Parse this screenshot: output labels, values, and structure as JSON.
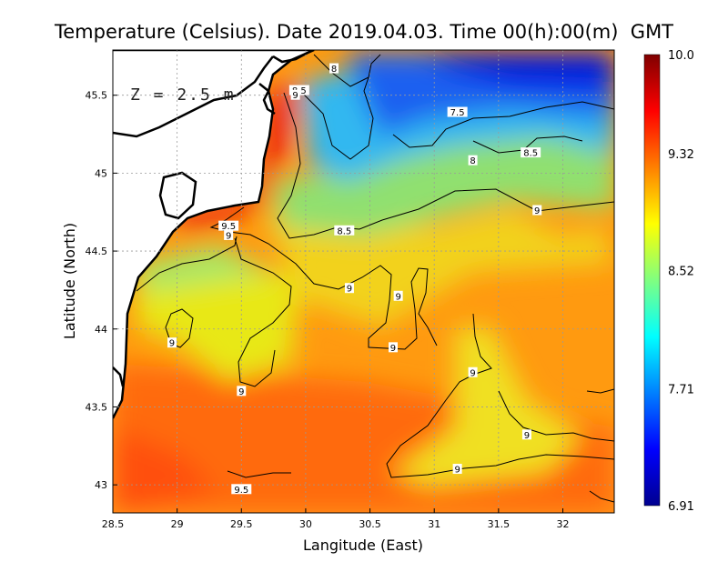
{
  "chart_data": {
    "type": "heatmap",
    "title": "Temperature (Celsius). Date 2019.04.03. Time 00(h):00(m)  GMT",
    "xlabel": "Langitude (East)",
    "ylabel": "Latitude (North)",
    "annotation": "Z = 2.5 m",
    "xlim": [
      28.5,
      32.4
    ],
    "ylim": [
      42.82,
      45.79
    ],
    "x_ticks": [
      {
        "value": 28.5,
        "label": "28.5"
      },
      {
        "value": 29,
        "label": "29"
      },
      {
        "value": 29.5,
        "label": "29.5"
      },
      {
        "value": 30,
        "label": "30"
      },
      {
        "value": 30.5,
        "label": "30.5"
      },
      {
        "value": 31,
        "label": "31"
      },
      {
        "value": 31.5,
        "label": "31.5"
      },
      {
        "value": 32,
        "label": "32"
      }
    ],
    "y_ticks": [
      {
        "value": 43,
        "label": "43"
      },
      {
        "value": 43.5,
        "label": "43.5"
      },
      {
        "value": 44,
        "label": "44"
      },
      {
        "value": 44.5,
        "label": "44.5"
      },
      {
        "value": 45,
        "label": "45"
      },
      {
        "value": 45.5,
        "label": "45.5"
      }
    ],
    "grid": true,
    "colorbar": {
      "min": 6.91,
      "max": 10.0,
      "tick_labels": [
        {
          "value": 10.0,
          "label": "10.0"
        },
        {
          "value": 9.32,
          "label": "9.32"
        },
        {
          "value": 8.52,
          "label": "8.52"
        },
        {
          "value": 7.71,
          "label": "7.71"
        },
        {
          "value": 6.91,
          "label": "6.91"
        }
      ],
      "colors": [
        "#00008f",
        "#0000ff",
        "#0080ff",
        "#00ffff",
        "#80ff80",
        "#ffff00",
        "#ff8000",
        "#ff0000",
        "#800000"
      ]
    },
    "contour_labels": [
      {
        "text": "8",
        "lon": 30.22,
        "lat": 45.67
      },
      {
        "text": "8.5",
        "lon": 29.95,
        "lat": 45.53
      },
      {
        "text": "9",
        "lon": 29.92,
        "lat": 45.5
      },
      {
        "text": "7.5",
        "lon": 31.18,
        "lat": 45.39
      },
      {
        "text": "8",
        "lon": 31.3,
        "lat": 45.08
      },
      {
        "text": "8.5",
        "lon": 31.75,
        "lat": 45.13
      },
      {
        "text": "9.5",
        "lon": 29.4,
        "lat": 44.66
      },
      {
        "text": "9",
        "lon": 29.4,
        "lat": 44.6
      },
      {
        "text": "8.5",
        "lon": 30.3,
        "lat": 44.63
      },
      {
        "text": "9",
        "lon": 31.8,
        "lat": 44.76
      },
      {
        "text": "9",
        "lon": 30.72,
        "lat": 44.21
      },
      {
        "text": "9",
        "lon": 30.34,
        "lat": 44.26
      },
      {
        "text": "9",
        "lon": 28.96,
        "lat": 43.91
      },
      {
        "text": "9",
        "lon": 30.68,
        "lat": 43.88
      },
      {
        "text": "9",
        "lon": 29.5,
        "lat": 43.6
      },
      {
        "text": "9",
        "lon": 31.3,
        "lat": 43.72
      },
      {
        "text": "9",
        "lon": 31.72,
        "lat": 43.32
      },
      {
        "text": "9",
        "lon": 31.18,
        "lat": 43.1
      },
      {
        "text": "9.5",
        "lon": 29.5,
        "lat": 42.97
      }
    ]
  }
}
